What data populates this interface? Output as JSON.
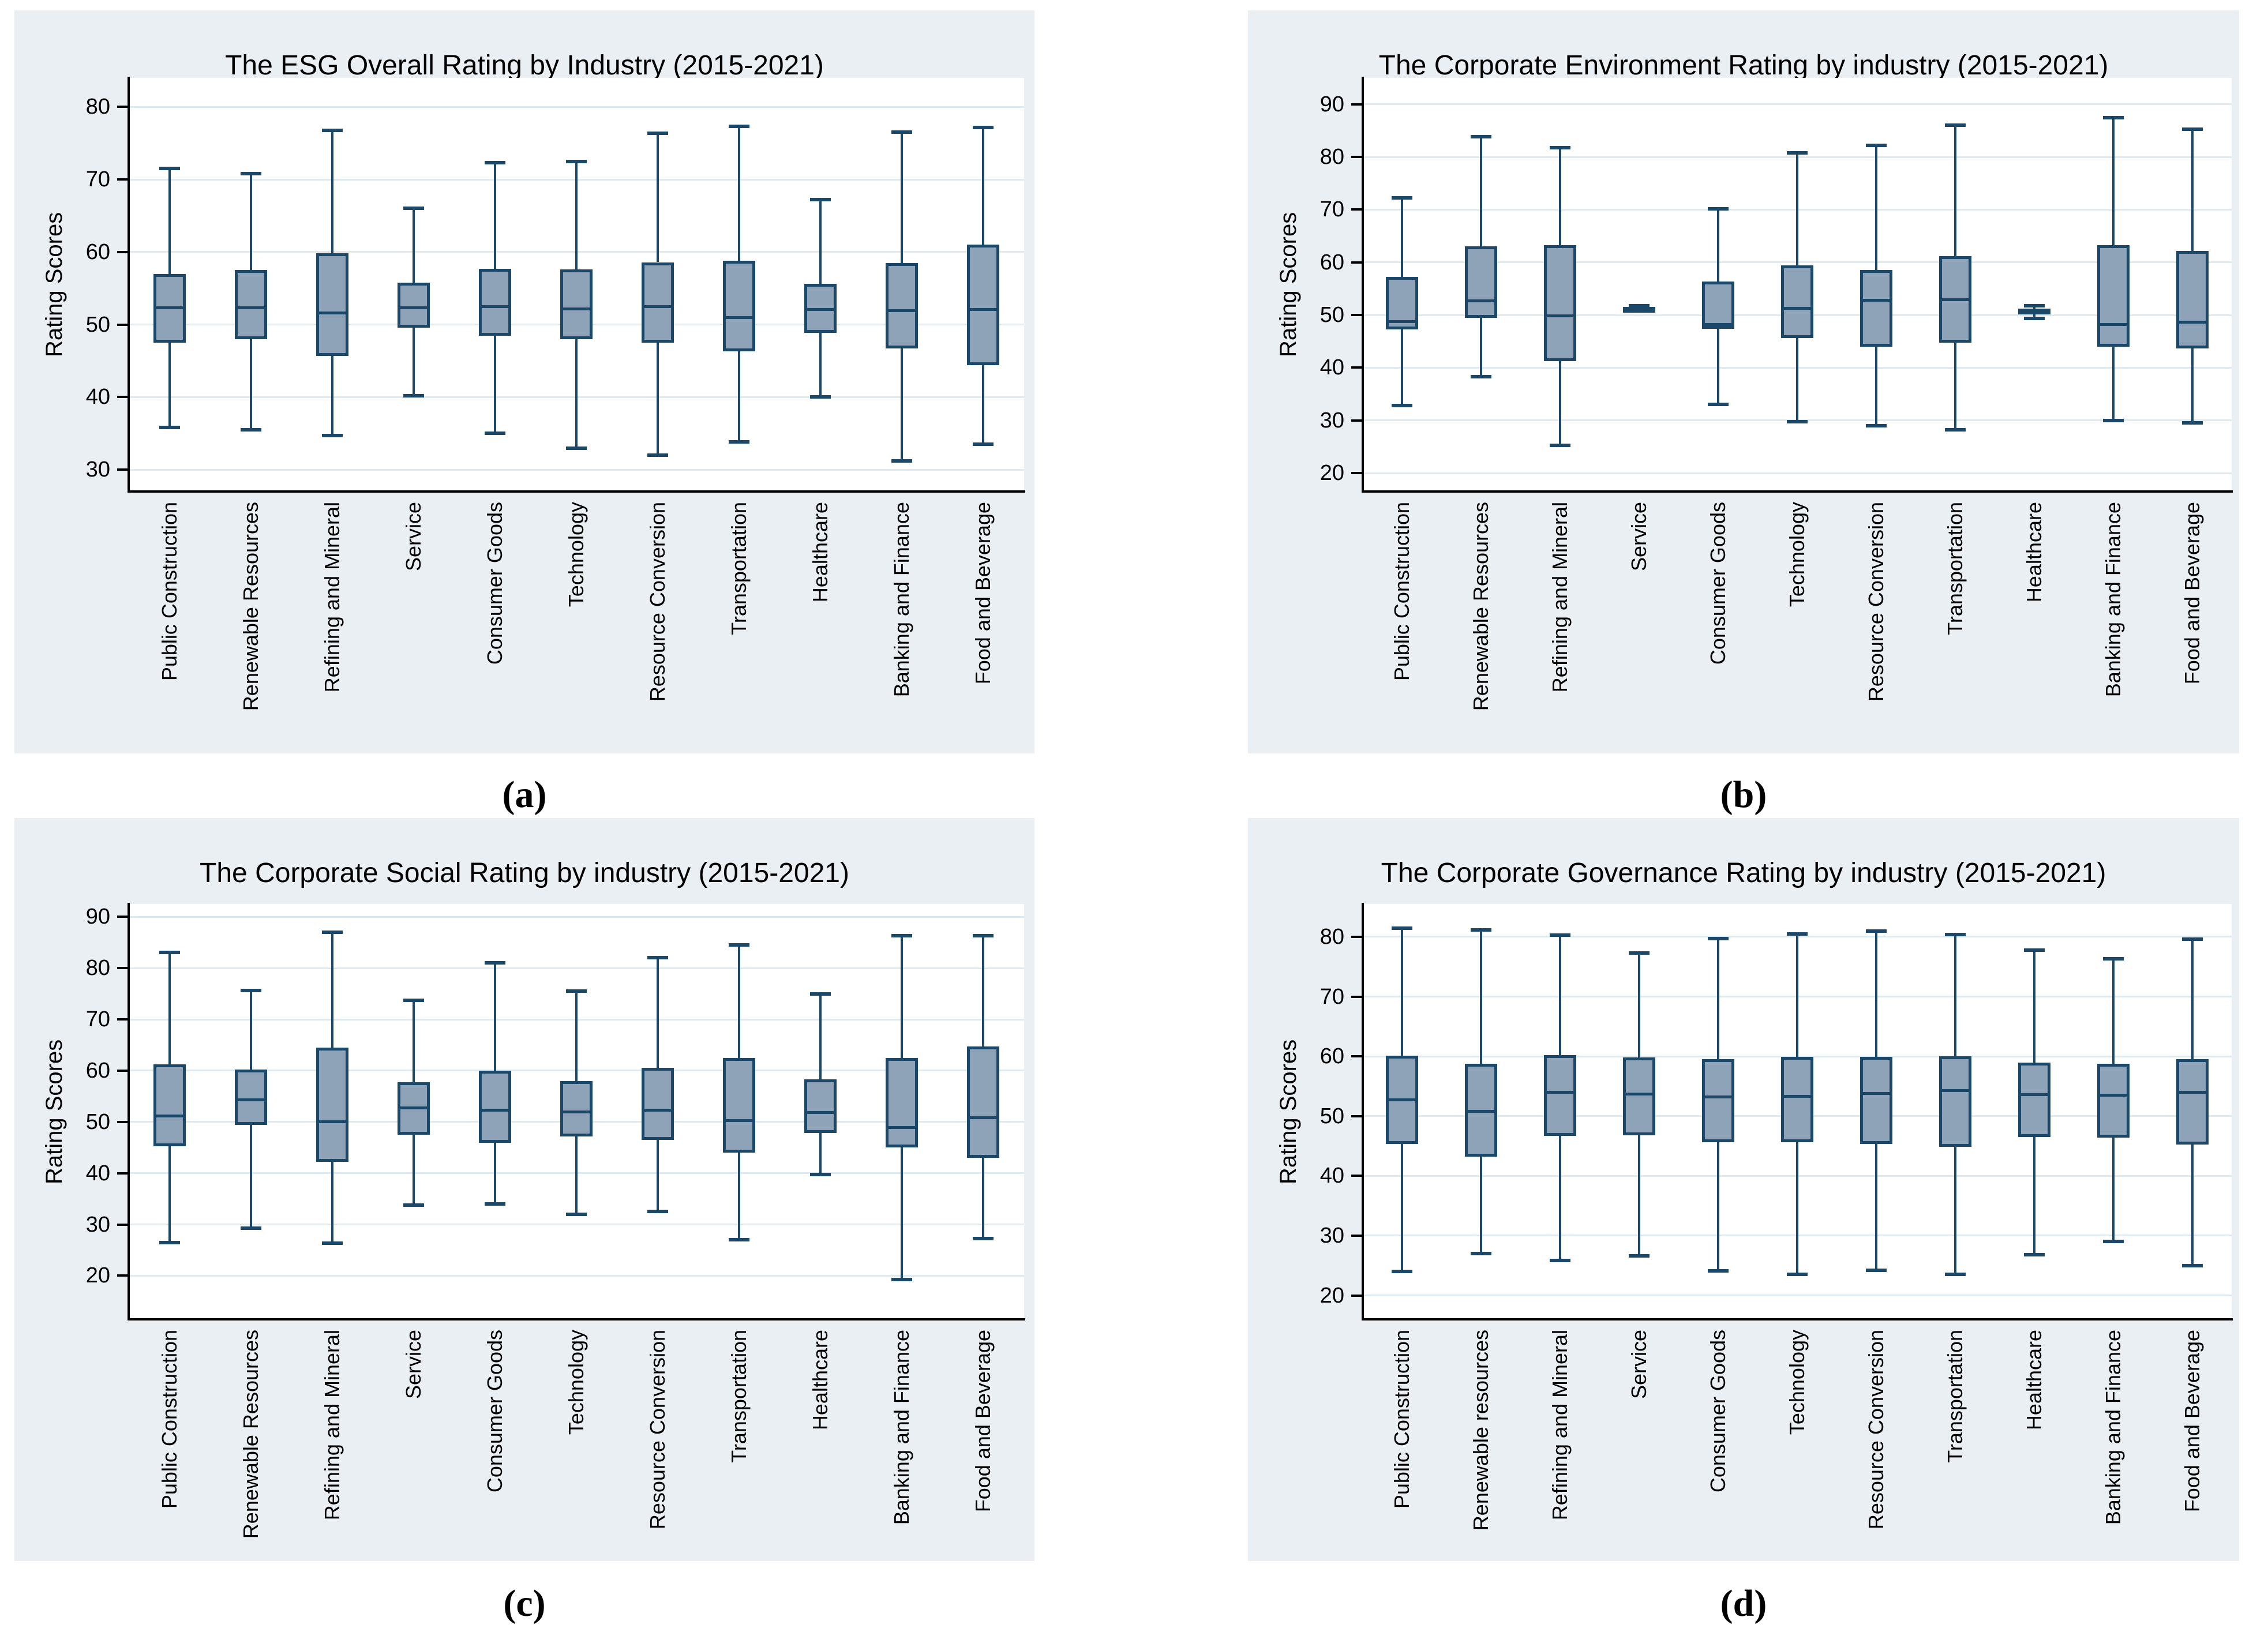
{
  "figure": {
    "background": "#ffffff",
    "panel_background": "#e9eff3",
    "plot_background": "#ffffff",
    "grid_color": "#dfeaf0",
    "axis_color": "#000000",
    "box_fill_color": "#8ea3b8",
    "box_border_color": "#1b4769"
  },
  "chart_data": {
    "type": "box",
    "stat_order": [
      "whisker_low",
      "q1",
      "median",
      "q3",
      "whisker_high"
    ],
    "grid": "horizontal",
    "legend": "none",
    "panels": [
      {
        "id": "a",
        "label": "(a)",
        "title": "The ESG Overall Rating by Industry (2015-2021)",
        "ylabel": "Rating Scores",
        "yticks": [
          80,
          70,
          60,
          50,
          40,
          30
        ],
        "ylim": [
          27.0,
          84.0
        ],
        "categories": [
          "Public Construction",
          "Renewable Resources",
          "Refining and Mineral",
          "Service",
          "Consumer Goods",
          "Technology",
          "Resource Conversion",
          "Transportation",
          "Healthcare",
          "Banking and Finance",
          "Food and Beverage"
        ],
        "values": [
          [
            35.8,
            47.5,
            52.3,
            57.0,
            71.5
          ],
          [
            35.5,
            48.0,
            52.3,
            57.5,
            70.8
          ],
          [
            34.7,
            45.7,
            51.6,
            59.8,
            76.8
          ],
          [
            40.2,
            49.6,
            52.3,
            55.8,
            66.0
          ],
          [
            35.0,
            48.5,
            52.5,
            57.7,
            72.3
          ],
          [
            33.0,
            48.0,
            52.2,
            57.6,
            72.5
          ],
          [
            32.0,
            47.5,
            52.5,
            58.6,
            76.4
          ],
          [
            33.8,
            46.3,
            51.0,
            58.8,
            77.3
          ],
          [
            40.0,
            48.9,
            52.1,
            55.6,
            67.2
          ],
          [
            31.2,
            46.7,
            51.9,
            58.5,
            76.5
          ],
          [
            33.5,
            44.4,
            52.1,
            61.0,
            77.2
          ]
        ]
      },
      {
        "id": "b",
        "label": "(b)",
        "title": "The Corporate Environment Rating by industry (2015-2021)",
        "ylabel": "Rating Scores",
        "yticks": [
          90,
          80,
          70,
          60,
          50,
          40,
          30,
          20
        ],
        "ylim": [
          16.5,
          95.0
        ],
        "categories": [
          "Public Construction",
          "Renewable Resources",
          "Refining and Mineral",
          "Service",
          "Consumer Goods",
          "Technology",
          "Resource Conversion",
          "Transportation",
          "Healthcare",
          "Banking and Finance",
          "Food and Beverage"
        ],
        "values": [
          [
            32.8,
            47.3,
            48.7,
            57.2,
            72.2
          ],
          [
            38.3,
            49.4,
            52.7,
            63.0,
            83.8
          ],
          [
            25.3,
            41.2,
            49.8,
            63.3,
            81.8
          ],
          [
            50.9,
            51.1,
            51.3,
            51.5,
            51.7
          ],
          [
            33.0,
            47.4,
            48.2,
            56.3,
            70.2
          ],
          [
            29.7,
            45.6,
            51.3,
            59.4,
            80.8
          ],
          [
            29.0,
            44.0,
            52.8,
            58.5,
            82.2
          ],
          [
            28.2,
            44.7,
            52.9,
            61.2,
            86.0
          ],
          [
            49.3,
            50.2,
            50.7,
            51.2,
            51.8
          ],
          [
            30.0,
            44.0,
            48.2,
            63.3,
            87.5
          ],
          [
            29.5,
            43.6,
            48.6,
            62.2,
            85.3
          ]
        ]
      },
      {
        "id": "c",
        "label": "(c)",
        "title": "The Corporate Social Rating by industry (2015-2021)",
        "ylabel": "Rating Scores",
        "yticks": [
          90,
          80,
          70,
          60,
          50,
          40,
          30,
          20
        ],
        "ylim": [
          11.5,
          92.5
        ],
        "categories": [
          "Public Construction",
          "Renewable Resources",
          "Refining and Mineral",
          "Service",
          "Consumer Goods",
          "Technology",
          "Resource Conversion",
          "Transportation",
          "Healthcare",
          "Banking and Finance",
          "Food and Beverage"
        ],
        "values": [
          [
            26.5,
            45.3,
            51.2,
            61.2,
            83.0
          ],
          [
            29.3,
            49.4,
            54.3,
            60.2,
            75.6
          ],
          [
            26.3,
            42.2,
            50.0,
            64.5,
            87.0
          ],
          [
            33.8,
            47.5,
            52.7,
            57.7,
            73.7
          ],
          [
            34.0,
            45.9,
            52.3,
            60.0,
            81.0
          ],
          [
            32.0,
            47.2,
            52.0,
            58.0,
            75.5
          ],
          [
            32.5,
            46.5,
            52.3,
            60.5,
            82.0
          ],
          [
            27.0,
            44.0,
            50.3,
            62.5,
            84.5
          ],
          [
            39.7,
            47.8,
            51.8,
            58.3,
            75.0
          ],
          [
            19.3,
            45.0,
            48.9,
            62.5,
            86.3
          ],
          [
            27.2,
            43.0,
            50.8,
            64.7,
            86.3
          ]
        ]
      },
      {
        "id": "d",
        "label": "(d)",
        "title": "The Corporate Governance Rating by industry (2015-2021)",
        "ylabel": "Rating Scores",
        "yticks": [
          80,
          70,
          60,
          50,
          40,
          30,
          20
        ],
        "ylim": [
          16.0,
          85.5
        ],
        "categories": [
          "Public Construction",
          "Renewable resources",
          "Refining and Mineral",
          "Service",
          "Consumer Goods",
          "Technology",
          "Resource Conversion",
          "Transportation",
          "Healthcare",
          "Banking and Finance",
          "Food and Beverage"
        ],
        "values": [
          [
            24.0,
            45.3,
            52.7,
            60.1,
            81.4
          ],
          [
            27.0,
            43.2,
            50.8,
            58.8,
            81.2
          ],
          [
            25.8,
            46.7,
            54.0,
            60.2,
            80.3
          ],
          [
            26.6,
            46.8,
            53.7,
            59.8,
            77.3
          ],
          [
            24.1,
            45.6,
            53.2,
            59.5,
            79.7
          ],
          [
            23.5,
            45.6,
            53.3,
            59.9,
            80.5
          ],
          [
            24.2,
            45.3,
            53.8,
            59.9,
            81.0
          ],
          [
            23.5,
            44.9,
            54.3,
            60.0,
            80.4
          ],
          [
            26.8,
            46.5,
            53.6,
            59.0,
            77.8
          ],
          [
            29.0,
            46.4,
            53.5,
            58.8,
            76.3
          ],
          [
            25.0,
            45.2,
            54.0,
            59.5,
            79.6
          ]
        ]
      }
    ]
  }
}
